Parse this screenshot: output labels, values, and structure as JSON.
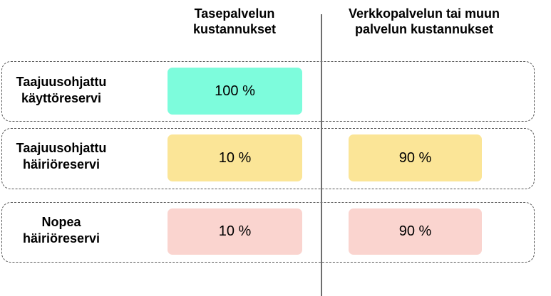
{
  "columns": {
    "tase": {
      "line1": "Tasepalvelun",
      "line2": "kustannukset"
    },
    "verkko": {
      "line1": "Verkkopalvelun tai muun",
      "line2": "palvelun kustannukset"
    }
  },
  "colors": {
    "teal": "#7dfcdc",
    "yellow": "#fbe597",
    "pink": "#fad4cf",
    "divider": "#6e6e6e",
    "dashed_border": "#555555"
  },
  "rows": [
    {
      "label_line1": "Taajuusohjattu",
      "label_line2": "käyttöreservi",
      "tase": "100 %",
      "verkko": "",
      "color": "teal"
    },
    {
      "label_line1": "Taajuusohjattu",
      "label_line2": "häiriöreservi",
      "tase": "10 %",
      "verkko": "90 %",
      "color": "yellow"
    },
    {
      "label_line1": "Nopea",
      "label_line2": "häiriöreservi",
      "tase": "10 %",
      "verkko": "90 %",
      "color": "pink"
    }
  ]
}
